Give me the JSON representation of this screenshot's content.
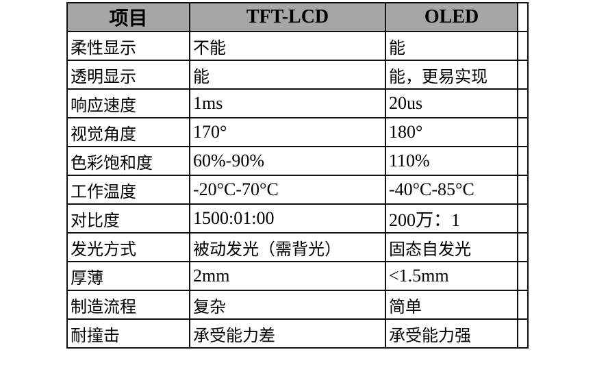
{
  "table": {
    "headers": [
      "项目",
      "TFT-LCD",
      "OLED"
    ],
    "rows": [
      [
        "柔性显示",
        "不能",
        "能"
      ],
      [
        "透明显示",
        "能",
        "能，更易实现"
      ],
      [
        "响应速度",
        "1ms",
        "20us"
      ],
      [
        "视觉角度",
        "170°",
        "180°"
      ],
      [
        "色彩饱和度",
        "60%-90%",
        "110%"
      ],
      [
        "工作温度",
        "-20°C-70°C",
        "-40°C-85°C"
      ],
      [
        "对比度",
        "1500:01:00",
        "200万：1"
      ],
      [
        "发光方式",
        "被动发光（需背光）",
        "固态自发光"
      ],
      [
        "厚薄",
        "2mm",
        "<1.5mm"
      ],
      [
        "制造流程",
        "复杂",
        "简单"
      ],
      [
        "耐撞击",
        "承受能力差",
        "承受能力强"
      ]
    ]
  },
  "colors": {
    "header_bg": "#a6a6a6",
    "border": "#111111"
  }
}
